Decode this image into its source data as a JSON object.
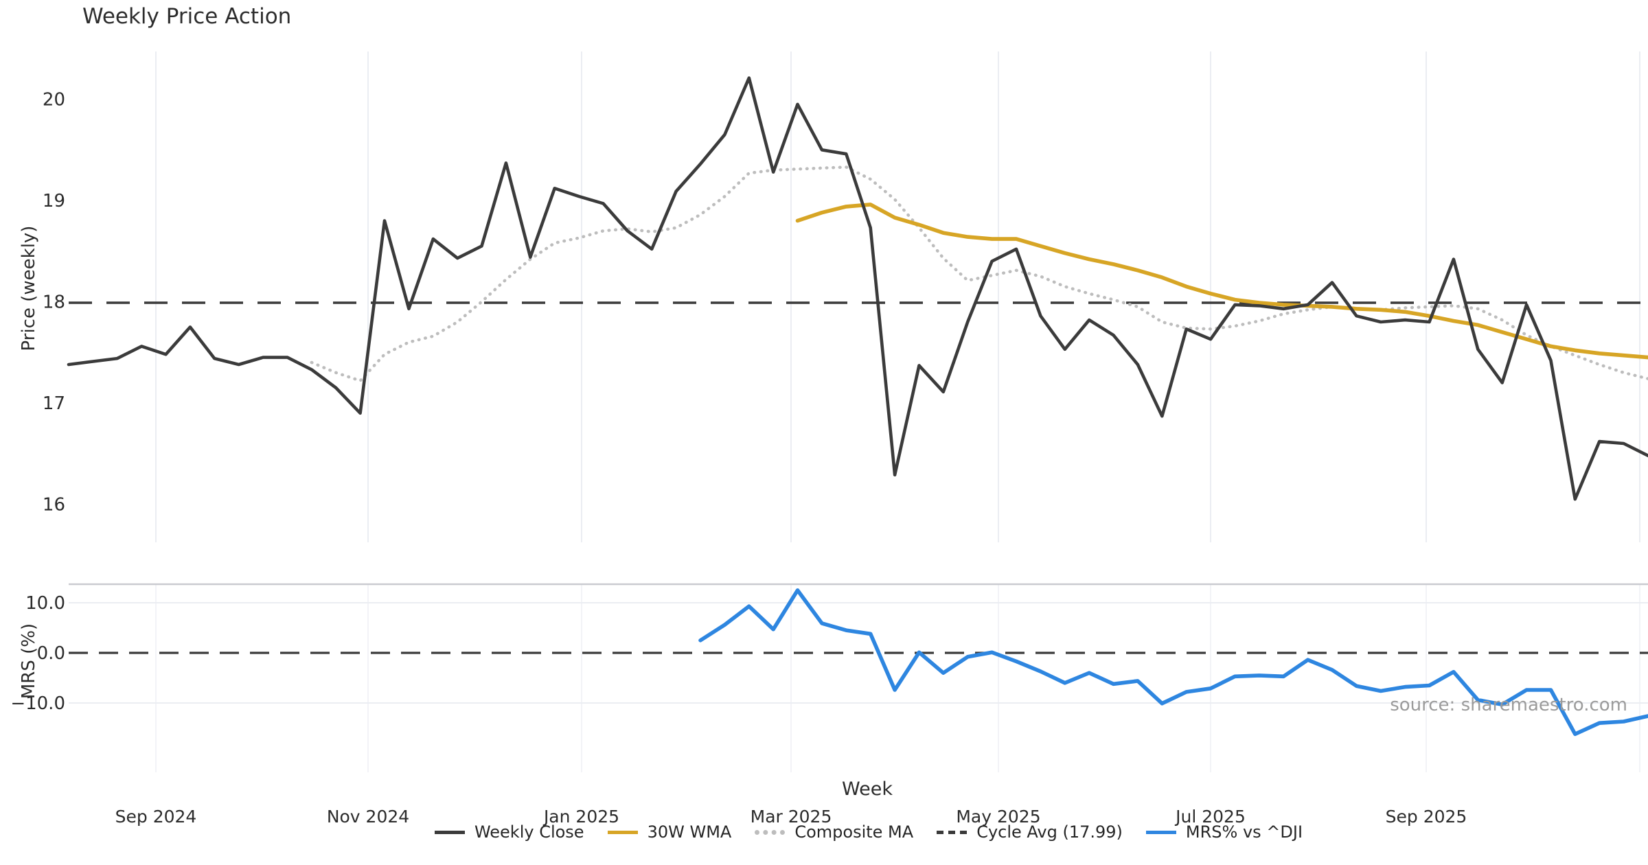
{
  "title": "Weekly Price Action",
  "source_note": "source: sharemaestro.com",
  "colors": {
    "weekly_close": "#3b3b3b",
    "wma_30w": "#d7a525",
    "composite_ma": "#bdbdbd",
    "cycle_avg": "#3a3a3a",
    "mrs": "#2e86e0",
    "gridline": "#ebedf2",
    "panel_border": "#c9cbd0",
    "tick_text": "#2b2b2b"
  },
  "legend": [
    {
      "label": "Weekly Close",
      "color": "#3b3b3b",
      "style": "solid"
    },
    {
      "label": "30W WMA",
      "color": "#d7a525",
      "style": "solid"
    },
    {
      "label": "Composite MA",
      "color": "#bdbdbd",
      "style": "dotted"
    },
    {
      "label": "Cycle Avg (17.99)",
      "color": "#3a3a3a",
      "style": "dashed"
    },
    {
      "label": "MRS% vs ^DJI",
      "color": "#2e86e0",
      "style": "solid"
    }
  ],
  "chart_data": [
    {
      "type": "line",
      "panel": "price",
      "title": "Weekly Price Action",
      "xlabel": "Week",
      "ylabel": "Price (weekly)",
      "x_tick_labels": [
        "Sep 2024",
        "Nov 2024",
        "Jan 2025",
        "Mar 2025",
        "May 2025",
        "Jul 2025",
        "Sep 2025"
      ],
      "y_ticks": [
        20,
        19,
        18,
        17,
        16
      ],
      "y_tick_labels": [
        "20",
        "19",
        "18",
        "17",
        "16"
      ],
      "ylim": [
        15.6,
        20.55
      ],
      "grid": "vertical-only",
      "cycle_avg": 17.99,
      "series": [
        {
          "name": "Weekly Close",
          "style": "solid",
          "color": "#3b3b3b",
          "start_week": 0,
          "values": [
            17.38,
            17.41,
            17.44,
            17.56,
            17.48,
            17.75,
            17.44,
            17.38,
            17.45,
            17.45,
            17.33,
            17.15,
            16.9,
            18.8,
            17.93,
            18.62,
            18.43,
            18.55,
            19.37,
            18.44,
            19.12,
            19.04,
            18.97,
            18.7,
            18.52,
            19.09,
            19.36,
            19.65,
            20.21,
            19.28,
            19.95,
            19.5,
            19.46,
            18.73,
            16.29,
            17.37,
            17.11,
            17.8,
            18.4,
            18.52,
            17.86,
            17.53,
            17.82,
            17.67,
            17.38,
            16.87,
            17.73,
            17.63,
            17.97,
            17.96,
            17.93,
            17.97,
            18.19,
            17.86,
            17.8,
            17.82,
            17.8,
            18.42,
            17.53,
            17.2,
            17.97,
            17.42,
            16.05,
            16.62,
            16.6,
            16.48
          ]
        },
        {
          "name": "30W WMA",
          "style": "solid",
          "color": "#d7a525",
          "start_week": 30,
          "values": [
            18.8,
            18.88,
            18.94,
            18.96,
            18.83,
            18.76,
            18.68,
            18.64,
            18.62,
            18.62,
            18.55,
            18.48,
            18.42,
            18.37,
            18.31,
            18.24,
            18.15,
            18.08,
            18.02,
            17.99,
            17.97,
            17.96,
            17.95,
            17.93,
            17.92,
            17.9,
            17.86,
            17.81,
            17.77,
            17.7,
            17.63,
            17.56,
            17.52,
            17.49,
            17.47,
            17.45
          ]
        },
        {
          "name": "Composite MA",
          "style": "dotted",
          "color": "#bdbdbd",
          "start_week": 10,
          "values": [
            17.4,
            17.3,
            17.22,
            17.48,
            17.6,
            17.66,
            17.8,
            18.0,
            18.22,
            18.42,
            18.58,
            18.63,
            18.7,
            18.72,
            18.69,
            18.73,
            18.86,
            19.04,
            19.27,
            19.3,
            19.31,
            19.32,
            19.33,
            19.21,
            19.01,
            18.73,
            18.43,
            18.21,
            18.26,
            18.31,
            18.25,
            18.15,
            18.08,
            18.02,
            17.95,
            17.8,
            17.74,
            17.73,
            17.76,
            17.81,
            17.88,
            17.92,
            17.95,
            17.93,
            17.92,
            17.94,
            17.95,
            17.96,
            17.93,
            17.82,
            17.67,
            17.56,
            17.47,
            17.38,
            17.3,
            17.24
          ]
        },
        {
          "name": "Cycle Avg (17.99)",
          "style": "dashed",
          "color": "#3a3a3a",
          "start_week": 0,
          "constant": 17.99
        }
      ]
    },
    {
      "type": "line",
      "panel": "mrs",
      "xlabel": "Week",
      "ylabel": "MRS (%)",
      "y_ticks": [
        10,
        0,
        -10
      ],
      "y_tick_labels": [
        "10.0",
        "0.0",
        "−10.0"
      ],
      "ylim": [
        -17.5,
        13.8
      ],
      "zero_line": 0,
      "series": [
        {
          "name": "MRS% vs ^DJI",
          "style": "solid",
          "color": "#2e86e0",
          "start_week": 26,
          "values": [
            2.5,
            5.6,
            9.3,
            4.7,
            12.5,
            5.9,
            4.5,
            3.8,
            -7.4,
            0.1,
            -4.0,
            -0.8,
            0.1,
            -1.7,
            -3.7,
            -6.0,
            -4.0,
            -6.2,
            -5.6,
            -10.1,
            -7.8,
            -7.1,
            -4.7,
            -4.5,
            -4.7,
            -1.4,
            -3.4,
            -6.6,
            -7.6,
            -6.8,
            -6.5,
            -3.8,
            -9.4,
            -10.3,
            -7.4,
            -7.4,
            -16.2,
            -14.0,
            -13.7,
            -12.6
          ]
        }
      ]
    }
  ]
}
